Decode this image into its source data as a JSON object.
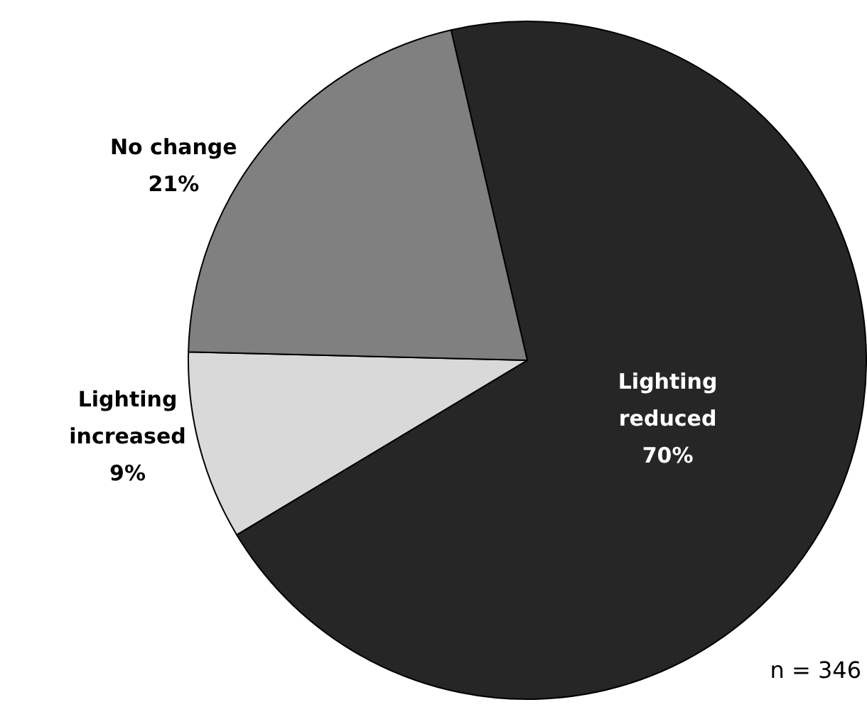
{
  "chart_data": {
    "type": "pie",
    "categories": [
      "Lighting reduced",
      "Lighting increased",
      "No change"
    ],
    "values": [
      70,
      9,
      21
    ],
    "colors": [
      "#262626",
      "#d9d9d9",
      "#808080"
    ],
    "value_labels": [
      "70%",
      "9%",
      "21%"
    ],
    "legend": false,
    "annotations": [
      "n = 346"
    ]
  }
}
